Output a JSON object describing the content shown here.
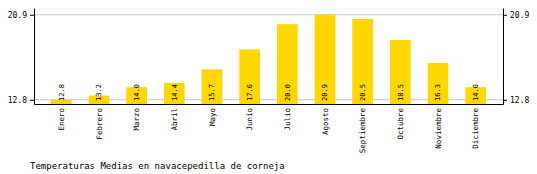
{
  "chart_data": {
    "type": "bar",
    "title": "Temperaturas Medias en navacepedilla de corneja",
    "categories": [
      "Enero",
      "Febrero",
      "Marzo",
      "Abril",
      "Mayo",
      "Junio",
      "Julio",
      "Agosto",
      "Septiembre",
      "Octubre",
      "Noviembre",
      "Diciembre"
    ],
    "values": [
      12.8,
      13.2,
      14.0,
      14.4,
      15.7,
      17.6,
      20.0,
      20.9,
      20.5,
      18.5,
      16.3,
      14.0
    ],
    "value_labels": [
      "12.8",
      "13.2",
      "14.0",
      "14.4",
      "15.7",
      "17.6",
      "20.0",
      "20.9",
      "20.5",
      "18.5",
      "16.3",
      "14.0"
    ],
    "data_labels": true,
    "color": "#FFD700",
    "ylim": [
      12.395,
      21.548
    ],
    "yticks": [
      12.8,
      20.9
    ],
    "y2lim": [
      12.395,
      21.548
    ],
    "y2ticks": [
      12.8,
      20.9
    ],
    "grid": true
  }
}
